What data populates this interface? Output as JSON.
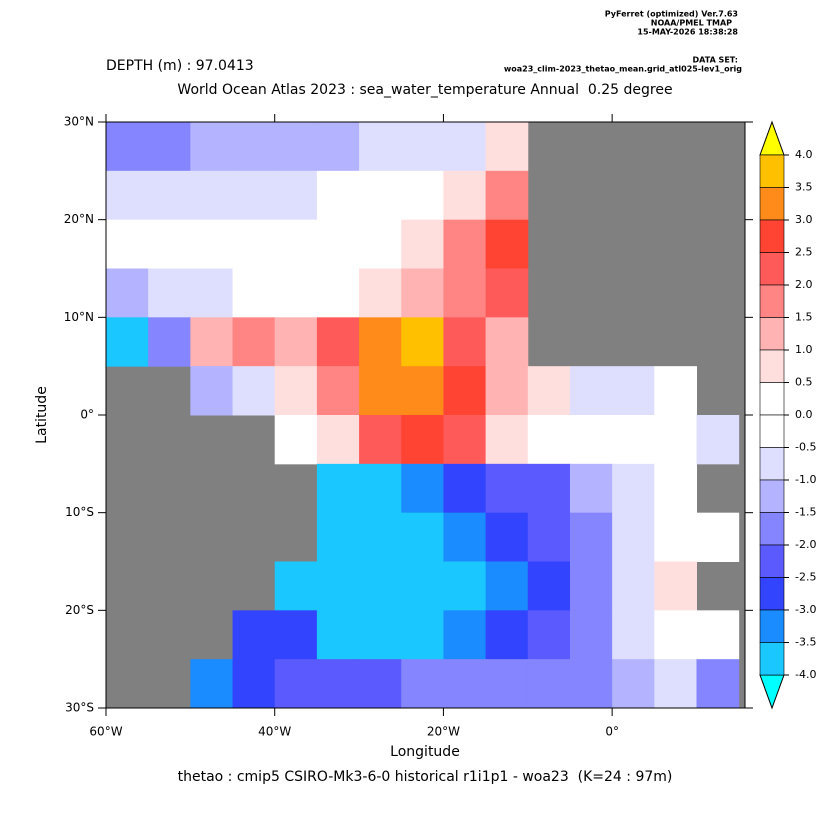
{
  "chart_data": {
    "type": "heatmap",
    "program": "PyFerret (optimized) Ver.7.63",
    "lab": "NOAA/PMEL TMAP",
    "timestamp": "15-MAY-2026 18:38:28",
    "dataset_label": "DATA SET:",
    "dataset": "woa23_clim-2023_thetao_mean.grid_atl025-lev1_orig",
    "depth": "DEPTH (m) : 97.0413",
    "title": "World Ocean Atlas 2023 : sea_water_temperature Annual  0.25 degree",
    "x_label": "Longitude",
    "y_label": "Latitude",
    "footer": "thetao : cmip5 CSIRO-Mk3-6-0 historical r1i1p1 - woa23  (K=24 : 97m)",
    "xlim": [
      -60,
      15.75
    ],
    "ylim": [
      -30,
      30
    ],
    "xticks": [
      {
        "value": -60,
        "label": "60°W"
      },
      {
        "value": -40,
        "label": "40°W"
      },
      {
        "value": -20,
        "label": "20°W"
      },
      {
        "value": 0,
        "label": "0°"
      }
    ],
    "yticks": [
      {
        "value": 30,
        "label": "30°N"
      },
      {
        "value": 20,
        "label": "20°N"
      },
      {
        "value": 10,
        "label": "10°N"
      },
      {
        "value": 0,
        "label": "0°"
      },
      {
        "value": -10,
        "label": "10°S"
      },
      {
        "value": -20,
        "label": "20°S"
      },
      {
        "value": -30,
        "label": "30°S"
      }
    ],
    "land_color": "#808080",
    "xbins": [
      -60,
      -55,
      -50,
      -45,
      -40,
      -35,
      -30,
      -25,
      -20,
      -15,
      -10,
      -5,
      0,
      5,
      10,
      15
    ],
    "ybins": [
      30,
      25,
      20,
      15,
      10,
      5,
      0,
      -5,
      -10,
      -15,
      -20,
      -25,
      -30
    ],
    "z": [
      [
        -2,
        -2,
        -1.5,
        -1.5,
        -1.5,
        -1.5,
        -1,
        -1,
        -1,
        0.5,
        null,
        null,
        null,
        null,
        null
      ],
      [
        -1,
        -1,
        -1,
        -1,
        -1,
        -0.5,
        -0.5,
        -0.5,
        0.5,
        1.5,
        null,
        null,
        null,
        null,
        null
      ],
      [
        -0.5,
        -0.5,
        -0.5,
        -0.5,
        -0.5,
        0,
        -0.5,
        0.5,
        1.5,
        2.5,
        null,
        null,
        null,
        null,
        null
      ],
      [
        -1.5,
        -1,
        -1,
        -0.5,
        -0.5,
        0,
        0.5,
        1,
        1.5,
        2,
        null,
        null,
        null,
        null,
        null
      ],
      [
        -4,
        -2,
        1,
        1.5,
        1,
        2,
        3,
        3.5,
        2,
        1,
        null,
        null,
        null,
        null,
        null
      ],
      [
        null,
        null,
        -1.5,
        -1,
        0.5,
        1.5,
        3,
        3,
        2.5,
        1,
        0.5,
        -1,
        -1,
        -0.5,
        null
      ],
      [
        null,
        null,
        null,
        null,
        0,
        0.5,
        2,
        2.5,
        2,
        0.5,
        0,
        0,
        0,
        -0.5,
        -1
      ],
      [
        null,
        null,
        null,
        null,
        null,
        -4,
        -4,
        -3.5,
        -3,
        -2.5,
        -2.5,
        -1.5,
        -1,
        0,
        null
      ],
      [
        null,
        null,
        null,
        null,
        null,
        -4,
        -4,
        -4,
        -3.5,
        -3,
        -2.5,
        -2,
        -1,
        0,
        -0.5
      ],
      [
        null,
        null,
        null,
        null,
        -4,
        -4,
        -4,
        -4,
        -4,
        -3.5,
        -3,
        -2,
        -1,
        0.5,
        null
      ],
      [
        null,
        null,
        null,
        -3,
        -3,
        -4,
        -4,
        -4,
        -3.5,
        -3,
        -2.5,
        -2,
        -1,
        0,
        -0.5
      ],
      [
        null,
        null,
        -3.5,
        -3,
        -2.5,
        -2.5,
        -2.5,
        -2,
        -2,
        -2,
        -2,
        -2,
        -1.5,
        -1,
        -2
      ]
    ],
    "levels": [
      {
        "value": 4,
        "label": "4.0"
      },
      {
        "value": 3.5,
        "label": "3.5"
      },
      {
        "value": 3,
        "label": "3.0"
      },
      {
        "value": 2.5,
        "label": "2.5"
      },
      {
        "value": 2,
        "label": "2.0"
      },
      {
        "value": 1.5,
        "label": "1.5"
      },
      {
        "value": 1,
        "label": "1.0"
      },
      {
        "value": 0.5,
        "label": "0.5"
      },
      {
        "value": 0,
        "label": "0.0"
      },
      {
        "value": -0.5,
        "label": "-0.5"
      },
      {
        "value": -1,
        "label": "-1.0"
      },
      {
        "value": -1.5,
        "label": "-1.5"
      },
      {
        "value": -2,
        "label": "-2.0"
      },
      {
        "value": -2.5,
        "label": "-2.5"
      },
      {
        "value": -3,
        "label": "-3.0"
      },
      {
        "value": -3.5,
        "label": "-3.5"
      },
      {
        "value": -4,
        "label": "-4.0"
      }
    ],
    "colors": [
      "#ffc000",
      "#ff8c1a",
      "#ff4433",
      "#ff5a5a",
      "#ff8585",
      "#ffb3b3",
      "#ffdede",
      "#ffffff",
      "#ffffff",
      "#dedeff",
      "#b3b3ff",
      "#8585ff",
      "#5a5aff",
      "#3344ff",
      "#1a8cff",
      "#1ac8ff"
    ],
    "over_color": "#ffff00",
    "under_color": "#00ffff"
  }
}
